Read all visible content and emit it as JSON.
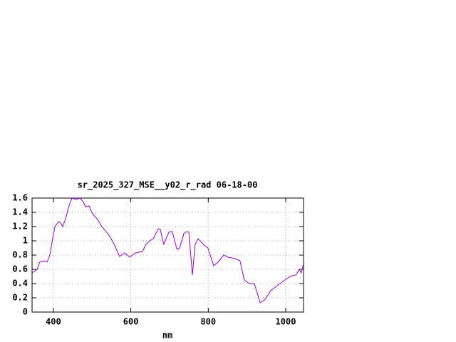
{
  "chart_data": {
    "type": "line",
    "title": "sr_2025_327_MSE__y02_r_rad 06-18-00",
    "x_label": "nm",
    "x": [
      345,
      358,
      365,
      376,
      384,
      391,
      397,
      404,
      414,
      419,
      424,
      431,
      441,
      448,
      459,
      468,
      477,
      483,
      492,
      501,
      514,
      525,
      538,
      547,
      557,
      571,
      584,
      597,
      612,
      630,
      639,
      649,
      658,
      671,
      676,
      685,
      698,
      707,
      719,
      726,
      737,
      744,
      750,
      759,
      766,
      774,
      787,
      799,
      814,
      825,
      840,
      851,
      869,
      882,
      893,
      906,
      919,
      934,
      947,
      961,
      980,
      998,
      1011,
      1026,
      1035,
      1040,
      1046
    ],
    "series": [
      {
        "color": "#9400d3",
        "values": [
          0.55,
          0.6,
          0.7,
          0.72,
          0.7,
          0.8,
          1.0,
          1.2,
          1.27,
          1.25,
          1.2,
          1.3,
          1.5,
          1.6,
          1.58,
          1.6,
          1.55,
          1.48,
          1.49,
          1.38,
          1.3,
          1.2,
          1.12,
          1.05,
          0.95,
          0.78,
          0.83,
          0.77,
          0.83,
          0.85,
          0.95,
          1.0,
          1.03,
          1.17,
          1.16,
          0.95,
          1.12,
          1.13,
          0.88,
          0.9,
          1.1,
          1.13,
          1.12,
          0.52,
          0.95,
          1.03,
          0.95,
          0.9,
          0.65,
          0.7,
          0.8,
          0.77,
          0.75,
          0.72,
          0.45,
          0.4,
          0.4,
          0.13,
          0.18,
          0.3,
          0.38,
          0.45,
          0.5,
          0.52,
          0.6,
          0.55,
          0.68
        ]
      }
    ],
    "xlim": [
      345,
      1046
    ],
    "ylim": [
      0,
      1.6
    ],
    "xticks": [
      400,
      600,
      800,
      1000
    ],
    "yticks": [
      0,
      0.2,
      0.4,
      0.6,
      0.8,
      1,
      1.2,
      1.4,
      1.6
    ],
    "grid": true
  }
}
